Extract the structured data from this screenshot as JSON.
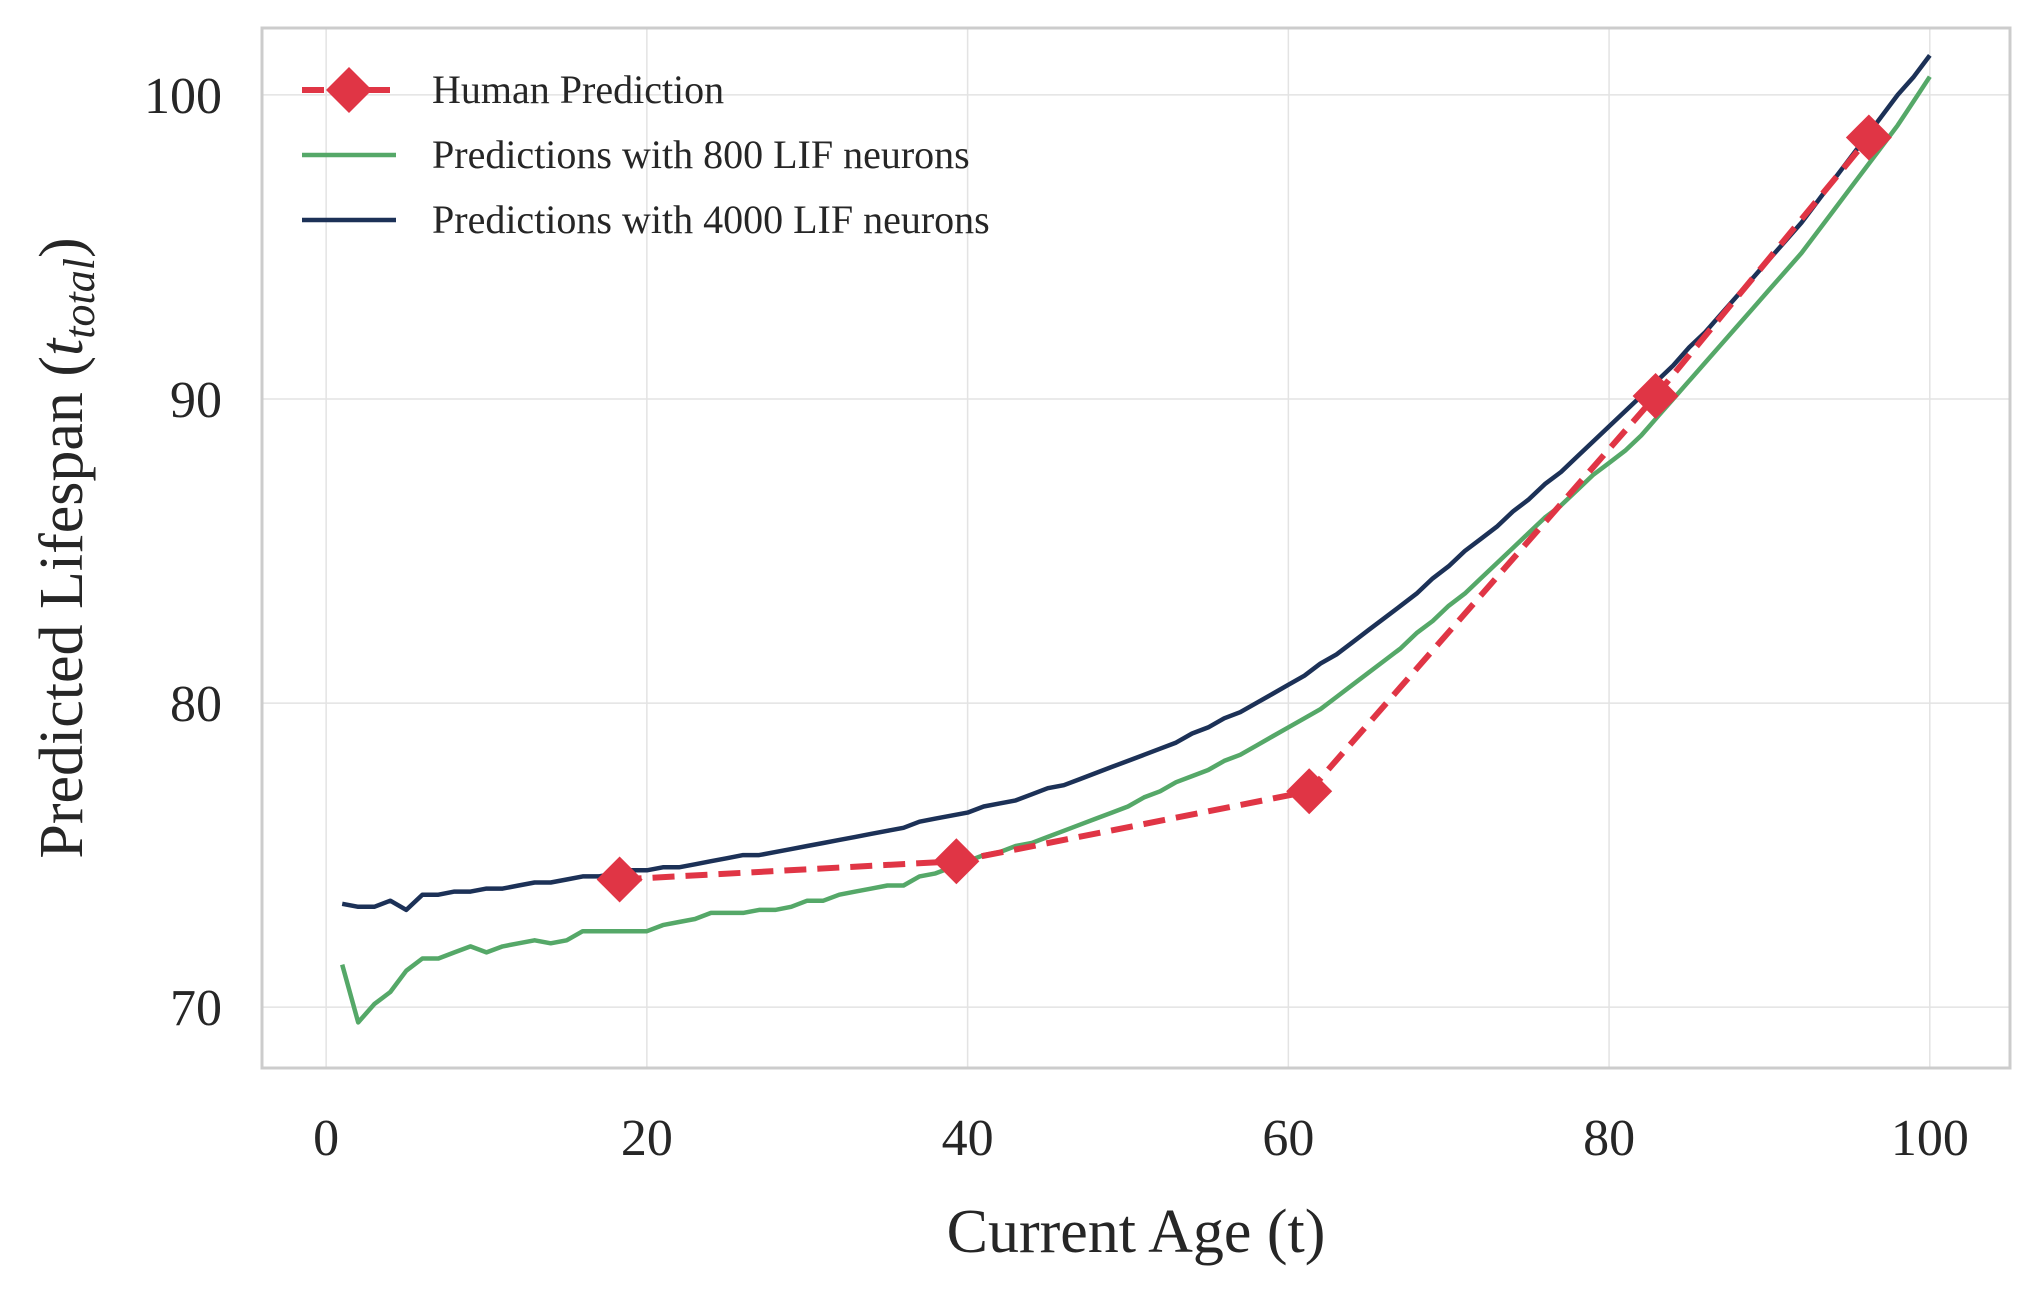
{
  "chart_data": {
    "type": "line",
    "xlabel": "Current Age (t)",
    "ylabel": "Predicted Lifespan (",
    "ylabel_math_base": "t",
    "ylabel_math_sub": "total",
    "ylabel_close": ")",
    "xlim": [
      -4,
      105
    ],
    "ylim": [
      68,
      102.2
    ],
    "xticks": [
      0,
      20,
      40,
      60,
      80,
      100
    ],
    "xtick_labels": [
      "0",
      "20",
      "40",
      "60",
      "80",
      "100"
    ],
    "yticks": [
      70,
      80,
      90,
      100
    ],
    "ytick_labels": [
      "70",
      "80",
      "90",
      "100"
    ],
    "grid": true,
    "legend_position": "top-left",
    "series": [
      {
        "name": "Human Prediction",
        "color": "#e03545",
        "style": "dashed",
        "marker": "diamond",
        "x": [
          18.3,
          39.3,
          61.3,
          82.9,
          96.2
        ],
        "y": [
          74.2,
          74.8,
          77.1,
          90.1,
          98.6
        ]
      },
      {
        "name": "Predictions with 800 LIF neurons",
        "color": "#55a868",
        "style": "solid",
        "x": [
          1,
          2,
          3,
          4,
          5,
          6,
          7,
          8,
          9,
          10,
          11,
          12,
          13,
          14,
          15,
          16,
          17,
          18,
          19,
          20,
          21,
          22,
          23,
          24,
          25,
          26,
          27,
          28,
          29,
          30,
          31,
          32,
          33,
          34,
          35,
          36,
          37,
          38,
          39,
          40,
          41,
          42,
          43,
          44,
          45,
          46,
          47,
          48,
          49,
          50,
          51,
          52,
          53,
          54,
          55,
          56,
          57,
          58,
          59,
          60,
          61,
          62,
          63,
          64,
          65,
          66,
          67,
          68,
          69,
          70,
          71,
          72,
          73,
          74,
          75,
          76,
          77,
          78,
          79,
          80,
          81,
          82,
          83,
          84,
          85,
          86,
          87,
          88,
          89,
          90,
          91,
          92,
          93,
          94,
          95,
          96,
          97,
          98,
          99,
          100
        ],
        "y": [
          71.4,
          69.5,
          70.1,
          70.5,
          71.2,
          71.6,
          71.6,
          71.8,
          72.0,
          71.8,
          72.0,
          72.1,
          72.2,
          72.1,
          72.2,
          72.5,
          72.5,
          72.5,
          72.5,
          72.5,
          72.7,
          72.8,
          72.9,
          73.1,
          73.1,
          73.1,
          73.2,
          73.2,
          73.3,
          73.5,
          73.5,
          73.7,
          73.8,
          73.9,
          74.0,
          74.0,
          74.3,
          74.4,
          74.6,
          74.8,
          75.0,
          75.1,
          75.3,
          75.4,
          75.6,
          75.8,
          76.0,
          76.2,
          76.4,
          76.6,
          76.9,
          77.1,
          77.4,
          77.6,
          77.8,
          78.1,
          78.3,
          78.6,
          78.9,
          79.2,
          79.5,
          79.8,
          80.2,
          80.6,
          81.0,
          81.4,
          81.8,
          82.3,
          82.7,
          83.2,
          83.6,
          84.1,
          84.6,
          85.1,
          85.6,
          86.1,
          86.5,
          87.0,
          87.5,
          87.9,
          88.3,
          88.8,
          89.4,
          90.0,
          90.6,
          91.2,
          91.8,
          92.4,
          93.0,
          93.6,
          94.2,
          94.8,
          95.5,
          96.2,
          96.9,
          97.6,
          98.3,
          99.0,
          99.8,
          100.6
        ]
      },
      {
        "name": "Predictions with 4000 LIF neurons",
        "color": "#1c3157",
        "style": "solid",
        "x": [
          1,
          2,
          3,
          4,
          5,
          6,
          7,
          8,
          9,
          10,
          11,
          12,
          13,
          14,
          15,
          16,
          17,
          18,
          19,
          20,
          21,
          22,
          23,
          24,
          25,
          26,
          27,
          28,
          29,
          30,
          31,
          32,
          33,
          34,
          35,
          36,
          37,
          38,
          39,
          40,
          41,
          42,
          43,
          44,
          45,
          46,
          47,
          48,
          49,
          50,
          51,
          52,
          53,
          54,
          55,
          56,
          57,
          58,
          59,
          60,
          61,
          62,
          63,
          64,
          65,
          66,
          67,
          68,
          69,
          70,
          71,
          72,
          73,
          74,
          75,
          76,
          77,
          78,
          79,
          80,
          81,
          82,
          83,
          84,
          85,
          86,
          87,
          88,
          89,
          90,
          91,
          92,
          93,
          94,
          95,
          96,
          97,
          98,
          99,
          100
        ],
        "y": [
          73.4,
          73.3,
          73.3,
          73.5,
          73.2,
          73.7,
          73.7,
          73.8,
          73.8,
          73.9,
          73.9,
          74.0,
          74.1,
          74.1,
          74.2,
          74.3,
          74.3,
          74.4,
          74.5,
          74.5,
          74.6,
          74.6,
          74.7,
          74.8,
          74.9,
          75.0,
          75.0,
          75.1,
          75.2,
          75.3,
          75.4,
          75.5,
          75.6,
          75.7,
          75.8,
          75.9,
          76.1,
          76.2,
          76.3,
          76.4,
          76.6,
          76.7,
          76.8,
          77.0,
          77.2,
          77.3,
          77.5,
          77.7,
          77.9,
          78.1,
          78.3,
          78.5,
          78.7,
          79.0,
          79.2,
          79.5,
          79.7,
          80.0,
          80.3,
          80.6,
          80.9,
          81.3,
          81.6,
          82.0,
          82.4,
          82.8,
          83.2,
          83.6,
          84.1,
          84.5,
          85.0,
          85.4,
          85.8,
          86.3,
          86.7,
          87.2,
          87.6,
          88.1,
          88.6,
          89.1,
          89.6,
          90.1,
          90.6,
          91.1,
          91.7,
          92.2,
          92.8,
          93.4,
          94.0,
          94.6,
          95.2,
          95.8,
          96.5,
          97.2,
          97.9,
          98.6,
          99.3,
          100.0,
          100.6,
          101.3
        ]
      }
    ]
  }
}
